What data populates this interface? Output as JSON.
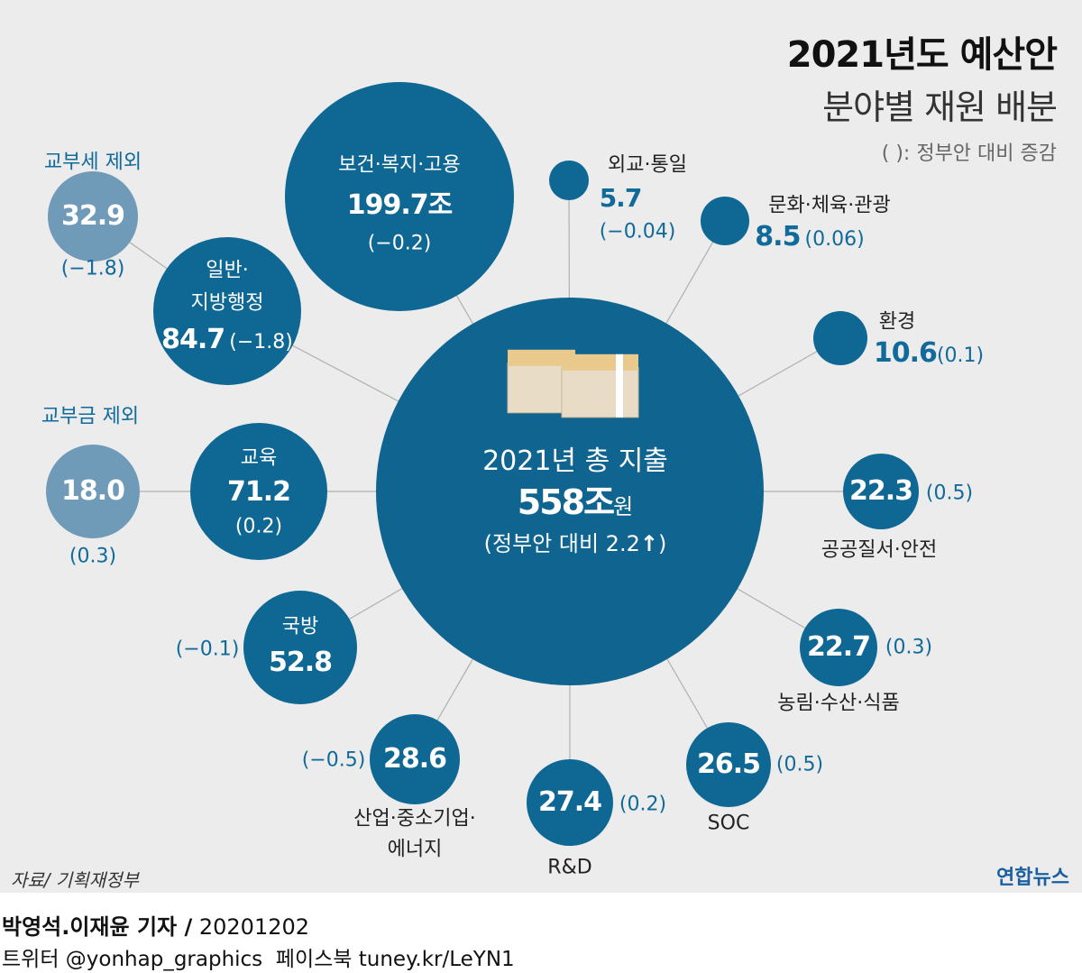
{
  "title": "2021년도 예산안",
  "subtitle": "분야별 재원 배분",
  "legend": "(   ): 정부안 대비 증감",
  "colors": {
    "primary": "#0f6894",
    "secondary": "#6f9ab8",
    "background": "#ececec",
    "value_text": "#106a9a",
    "connector": "#b0b0b0"
  },
  "center": {
    "icon": "money-stack-icon",
    "label": "2021년 총 지출",
    "value": "558조",
    "unit": "원",
    "change": "(정부안 대비 2.2",
    "arrow": "↑",
    "close": ")"
  },
  "sectors": [
    {
      "id": "health",
      "name": "보건·복지·고용",
      "value": "199.7조",
      "change": "(−0.2)"
    },
    {
      "id": "general",
      "name1": "일반·",
      "name2": "지방행정",
      "value": "84.7",
      "change": "(−1.8)"
    },
    {
      "id": "general-excl",
      "note": "교부세 제외",
      "value": "32.9",
      "change": "(−1.8)"
    },
    {
      "id": "edu",
      "name": "교육",
      "value": "71.2",
      "change": "(0.2)"
    },
    {
      "id": "edu-excl",
      "note": "교부금 제외",
      "value": "18.0",
      "change": "(0.3)"
    },
    {
      "id": "defense",
      "name": "국방",
      "value": "52.8",
      "change": "(−0.1)"
    },
    {
      "id": "industry",
      "name1": "산업·중소기업·",
      "name2": "에너지",
      "value": "28.6",
      "change": "(−0.5)"
    },
    {
      "id": "rnd",
      "name": "R&D",
      "value": "27.4",
      "change": "(0.2)"
    },
    {
      "id": "soc",
      "name": "SOC",
      "value": "26.5",
      "change": "(0.5)"
    },
    {
      "id": "agri",
      "name": "농림·수산·식품",
      "value": "22.7",
      "change": "(0.3)"
    },
    {
      "id": "safety",
      "name": "공공질서·안전",
      "value": "22.3",
      "change": "(0.5)"
    },
    {
      "id": "env",
      "name": "환경",
      "value": "10.6",
      "change": "(0.1)"
    },
    {
      "id": "culture",
      "name": "문화·체육·관광",
      "value": "8.5",
      "change": "(0.06)"
    },
    {
      "id": "diplomacy",
      "name": "외교·통일",
      "value": "5.7",
      "change": "(−0.04)"
    }
  ],
  "source": "자료/ 기획재정부",
  "logo": "연합뉴스",
  "credit": {
    "reporters": "박영석.이재윤 기자 /",
    "date": "20201202",
    "twitter": "트위터 @yonhap_graphics",
    "facebook": "페이스북 tuney.kr/LeYN1"
  }
}
